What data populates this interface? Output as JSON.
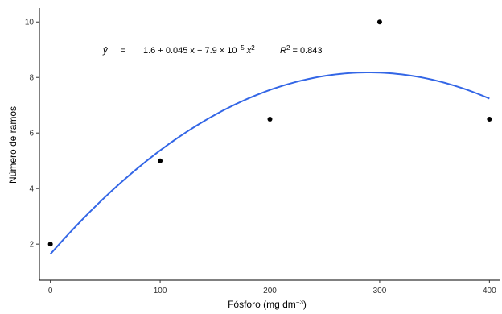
{
  "chart_data": {
    "type": "scatter",
    "xlabel_main": "Fósforo (mg dm",
    "xlabel_sup": "−3",
    "xlabel_close": ")",
    "ylabel": "Número de ramos",
    "xticks": [
      0,
      100,
      200,
      300,
      400
    ],
    "yticks": [
      2,
      4,
      6,
      8,
      10
    ],
    "xlim": [
      -10,
      410
    ],
    "ylim": [
      0.7,
      10.5
    ],
    "grid": false,
    "points": [
      {
        "x": 0,
        "y": 2.0
      },
      {
        "x": 100,
        "y": 5.0
      },
      {
        "x": 200,
        "y": 6.5
      },
      {
        "x": 300,
        "y": 10.0
      },
      {
        "x": 400,
        "y": 6.5
      }
    ],
    "fit": {
      "name": "Quadratic fit",
      "color": "#3366E6",
      "x_range": [
        0,
        400
      ],
      "points": [
        {
          "x": 0,
          "y": 1.64
        },
        {
          "x": 100,
          "y": 5.34
        },
        {
          "x": 200,
          "y": 7.55
        },
        {
          "x": 290,
          "y": 8.2
        },
        {
          "x": 400,
          "y": 7.24
        }
      ]
    },
    "point_color": "#000000",
    "equation": {
      "yhat": "ŷ",
      "equals": "=",
      "rhs_main": "1.6 + 0.045 x − 7.9 × 10",
      "rhs_exp": "−5",
      "rhs_tail": " x",
      "rhs_sq": "2",
      "r2_R": "R",
      "r2_sup": "2",
      "r2_value": " = 0.843"
    }
  }
}
